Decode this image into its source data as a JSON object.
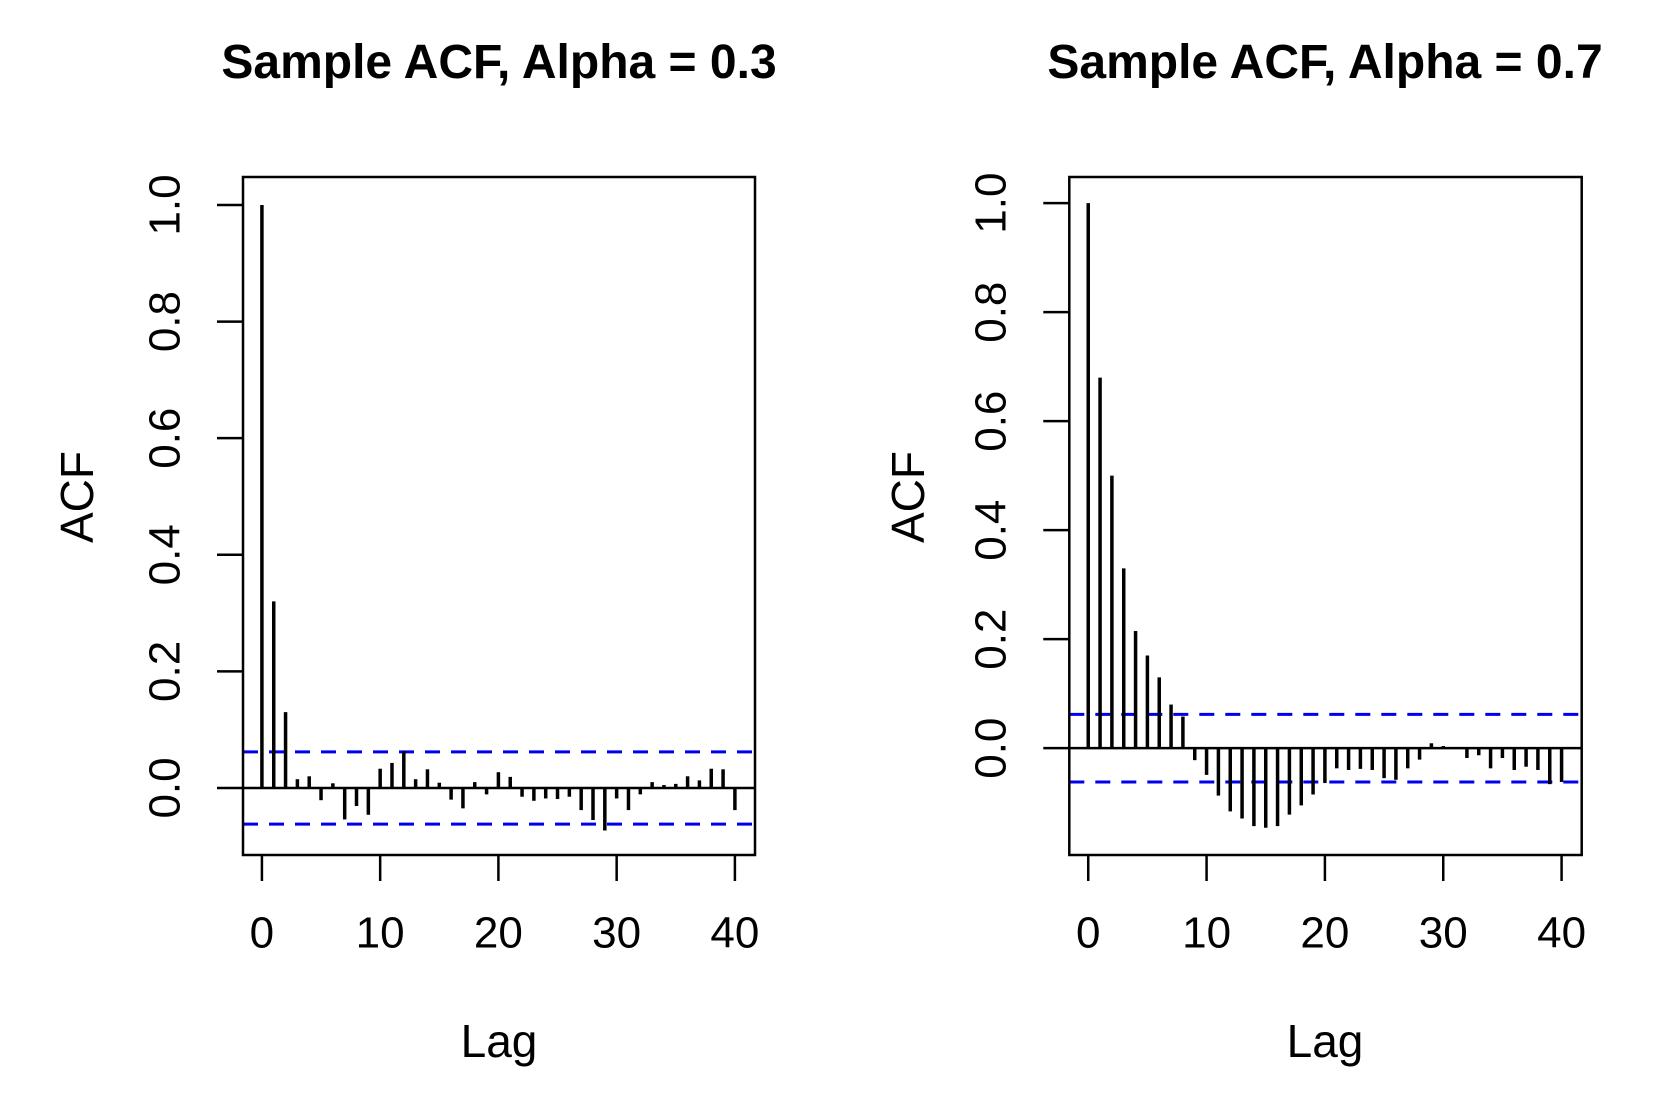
{
  "figure": {
    "background": "#ffffff",
    "axis_color": "#000000",
    "bar_color": "#000000",
    "conf_line_color": "#0000EE"
  },
  "chart_data": [
    {
      "type": "bar",
      "title": "Sample ACF, Alpha = 0.3",
      "xlabel": "Lag",
      "ylabel": "ACF",
      "x": [
        0,
        1,
        2,
        3,
        4,
        5,
        6,
        7,
        8,
        9,
        10,
        11,
        12,
        13,
        14,
        15,
        16,
        17,
        18,
        19,
        20,
        21,
        22,
        23,
        24,
        25,
        26,
        27,
        28,
        29,
        30,
        31,
        32,
        33,
        34,
        35,
        36,
        37,
        38,
        39,
        40
      ],
      "values": [
        1.0,
        0.32,
        0.13,
        0.015,
        0.02,
        -0.021,
        0.008,
        -0.054,
        -0.031,
        -0.046,
        0.033,
        0.043,
        0.063,
        0.015,
        0.032,
        0.009,
        -0.02,
        -0.035,
        0.01,
        -0.011,
        0.027,
        0.019,
        -0.015,
        -0.022,
        -0.018,
        -0.019,
        -0.015,
        -0.038,
        -0.055,
        -0.073,
        -0.018,
        -0.038,
        -0.011,
        0.01,
        0.005,
        0.007,
        0.02,
        0.013,
        0.033,
        0.032,
        -0.038
      ],
      "conf_band": 0.062,
      "conf_style": "dashed",
      "zero_line": true,
      "grid": false,
      "xlim": [
        -1.6,
        41.7
      ],
      "ylim": [
        -0.115,
        1.048
      ],
      "xtick_values": [
        0,
        10,
        20,
        30,
        40
      ],
      "xtick_labels": [
        "0",
        "10",
        "20",
        "30",
        "40"
      ],
      "ytick_values": [
        0.0,
        0.2,
        0.4,
        0.6,
        0.8,
        1.0
      ],
      "ytick_labels": [
        "0.0",
        "0.2",
        "0.4",
        "0.6",
        "0.8",
        "1.0"
      ]
    },
    {
      "type": "bar",
      "title": "Sample ACF, Alpha = 0.7",
      "xlabel": "Lag",
      "ylabel": "ACF",
      "x": [
        0,
        1,
        2,
        3,
        4,
        5,
        6,
        7,
        8,
        9,
        10,
        11,
        12,
        13,
        14,
        15,
        16,
        17,
        18,
        19,
        20,
        21,
        22,
        23,
        24,
        25,
        26,
        27,
        28,
        29,
        30,
        31,
        32,
        33,
        34,
        35,
        36,
        37,
        38,
        39,
        40
      ],
      "values": [
        1.0,
        0.68,
        0.5,
        0.33,
        0.215,
        0.17,
        0.13,
        0.08,
        0.058,
        -0.022,
        -0.049,
        -0.087,
        -0.116,
        -0.129,
        -0.143,
        -0.146,
        -0.143,
        -0.122,
        -0.105,
        -0.085,
        -0.064,
        -0.037,
        -0.04,
        -0.038,
        -0.04,
        -0.055,
        -0.058,
        -0.037,
        -0.021,
        0.009,
        0.004,
        0.0,
        -0.018,
        -0.013,
        -0.037,
        -0.018,
        -0.04,
        -0.034,
        -0.04,
        -0.066,
        -0.062
      ],
      "conf_band": 0.062,
      "conf_style": "dashed",
      "zero_line": true,
      "grid": false,
      "xlim": [
        -1.6,
        41.7
      ],
      "ylim": [
        -0.196,
        1.048
      ],
      "xtick_values": [
        0,
        10,
        20,
        30,
        40
      ],
      "xtick_labels": [
        "0",
        "10",
        "20",
        "30",
        "40"
      ],
      "ytick_values": [
        0.0,
        0.2,
        0.4,
        0.6,
        0.8,
        1.0
      ],
      "ytick_labels": [
        "0.0",
        "0.2",
        "0.4",
        "0.6",
        "0.8",
        "1.0"
      ]
    }
  ]
}
